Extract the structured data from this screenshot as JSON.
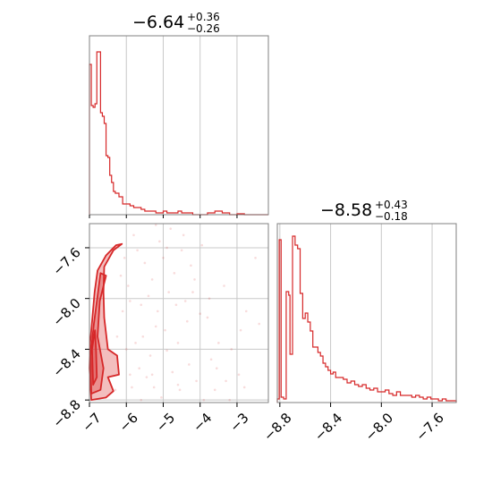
{
  "colors": {
    "series": "#d62728",
    "frame": "#808080",
    "grid": "#c8c8c8"
  },
  "chart_data": [
    {
      "type": "histogram",
      "panel": "top-left",
      "title": {
        "median": "−6.64",
        "plus": "+0.36",
        "minus": "−0.26"
      },
      "x_range": [
        -7.0,
        -2.15
      ],
      "grid_x": [
        -6,
        -5,
        -4,
        -3
      ],
      "bins": [
        -7.0,
        -6.95,
        -6.9,
        -6.85,
        -6.8,
        -6.75,
        -6.7,
        -6.65,
        -6.6,
        -6.55,
        -6.5,
        -6.45,
        -6.4,
        -6.35,
        -6.3,
        -6.2,
        -6.1,
        -6.0,
        -5.9,
        -5.8,
        -5.7,
        -5.6,
        -5.5,
        -5.4,
        -5.3,
        -5.2,
        -5.0,
        -4.9,
        -4.8,
        -4.6,
        -4.5,
        -4.3,
        -4.2,
        -4.0,
        -3.8,
        -3.6,
        -3.4,
        -3.2,
        -3.0,
        -2.8,
        -2.6,
        -2.4,
        -2.15
      ],
      "values": [
        0.84,
        0.61,
        0.6,
        0.62,
        0.91,
        0.91,
        0.57,
        0.55,
        0.51,
        0.33,
        0.32,
        0.22,
        0.18,
        0.13,
        0.12,
        0.1,
        0.06,
        0.06,
        0.05,
        0.04,
        0.04,
        0.03,
        0.02,
        0.02,
        0.02,
        0.01,
        0.02,
        0.01,
        0.01,
        0.02,
        0.01,
        0.01,
        0.0,
        0.0,
        0.01,
        0.02,
        0.01,
        0.0,
        0.005,
        0.0,
        0.0,
        0.0
      ],
      "ylim": [
        0,
        1.0
      ]
    },
    {
      "type": "histogram",
      "panel": "bottom-right",
      "title": {
        "median": "−8.58",
        "plus": "+0.43",
        "minus": "−0.18"
      },
      "x_range": [
        -8.82,
        -7.41
      ],
      "x_ticks": [
        -8.8,
        -8.4,
        -8.0,
        -7.6
      ],
      "x_tick_labels": [
        "−8.8",
        "−8.4",
        "−8.0",
        "−7.6"
      ],
      "bins": [
        -8.82,
        -8.805,
        -8.79,
        -8.77,
        -8.75,
        -8.73,
        -8.72,
        -8.7,
        -8.68,
        -8.66,
        -8.64,
        -8.62,
        -8.6,
        -8.58,
        -8.56,
        -8.54,
        -8.52,
        -8.5,
        -8.48,
        -8.46,
        -8.44,
        -8.42,
        -8.4,
        -8.38,
        -8.36,
        -8.33,
        -8.3,
        -8.27,
        -8.24,
        -8.21,
        -8.18,
        -8.15,
        -8.12,
        -8.09,
        -8.06,
        -8.03,
        -8.0,
        -7.97,
        -7.94,
        -7.91,
        -7.88,
        -7.85,
        -7.82,
        -7.79,
        -7.76,
        -7.73,
        -7.7,
        -7.67,
        -7.64,
        -7.61,
        -7.58,
        -7.55,
        -7.52,
        -7.49,
        -7.46,
        -7.43,
        -7.41
      ],
      "values": [
        0.02,
        0.91,
        0.03,
        0.02,
        0.62,
        0.6,
        0.27,
        0.93,
        0.88,
        0.86,
        0.61,
        0.47,
        0.5,
        0.45,
        0.4,
        0.31,
        0.31,
        0.28,
        0.26,
        0.22,
        0.2,
        0.18,
        0.16,
        0.17,
        0.14,
        0.14,
        0.13,
        0.11,
        0.12,
        0.1,
        0.09,
        0.1,
        0.08,
        0.07,
        0.08,
        0.06,
        0.06,
        0.07,
        0.05,
        0.04,
        0.06,
        0.04,
        0.04,
        0.04,
        0.03,
        0.04,
        0.03,
        0.02,
        0.03,
        0.02,
        0.02,
        0.01,
        0.02,
        0.01,
        0.01,
        0.01
      ],
      "ylim": [
        0,
        1.0
      ]
    },
    {
      "type": "scatter",
      "panel": "bottom-left",
      "x_range": [
        -7.0,
        -2.15
      ],
      "y_range": [
        -8.82,
        -7.41
      ],
      "x_ticks": [
        -7,
        -6,
        -5,
        -4,
        -3
      ],
      "x_tick_labels": [
        "−7",
        "−6",
        "−5",
        "−4",
        "−3"
      ],
      "y_ticks": [
        -8.8,
        -8.4,
        -8.0,
        -7.6
      ],
      "y_tick_labels": [
        "−8.8",
        "−8.4",
        "−8.0",
        "−7.6"
      ],
      "points": [
        [
          -5.9,
          -8.02
        ],
        [
          -5.6,
          -8.05
        ],
        [
          -5.3,
          -7.85
        ],
        [
          -5.1,
          -7.55
        ],
        [
          -4.8,
          -7.45
        ],
        [
          -4.5,
          -7.62
        ],
        [
          -4.2,
          -7.95
        ],
        [
          -4.0,
          -8.12
        ],
        [
          -3.8,
          -8.15
        ],
        [
          -3.5,
          -8.35
        ],
        [
          -5.7,
          -7.62
        ],
        [
          -5.2,
          -8.22
        ],
        [
          -4.9,
          -8.41
        ],
        [
          -4.6,
          -8.35
        ],
        [
          -4.3,
          -8.52
        ],
        [
          -4.1,
          -8.65
        ],
        [
          -3.7,
          -8.48
        ],
        [
          -3.3,
          -8.65
        ],
        [
          -2.9,
          -8.25
        ],
        [
          -2.5,
          -7.68
        ],
        [
          -5.95,
          -7.9
        ],
        [
          -5.85,
          -8.7
        ],
        [
          -5.65,
          -8.55
        ],
        [
          -5.45,
          -8.62
        ],
        [
          -5.25,
          -8.7
        ],
        [
          -5.05,
          -8.78
        ],
        [
          -4.85,
          -7.95
        ],
        [
          -4.65,
          -8.05
        ],
        [
          -4.45,
          -7.5
        ],
        [
          -4.25,
          -7.74
        ],
        [
          -6.05,
          -7.68
        ],
        [
          -5.55,
          -8.3
        ],
        [
          -5.35,
          -8.45
        ],
        [
          -5.15,
          -8.1
        ],
        [
          -4.95,
          -8.25
        ],
        [
          -4.75,
          -8.58
        ],
        [
          -4.55,
          -8.72
        ],
        [
          -4.35,
          -8.18
        ],
        [
          -4.15,
          -7.85
        ],
        [
          -3.95,
          -7.58
        ],
        [
          -3.75,
          -8.0
        ],
        [
          -3.55,
          -8.55
        ],
        [
          -3.35,
          -7.9
        ],
        [
          -3.15,
          -8.4
        ],
        [
          -2.95,
          -8.6
        ],
        [
          -2.75,
          -8.1
        ],
        [
          -5.8,
          -7.5
        ],
        [
          -5.0,
          -7.68
        ],
        [
          -4.7,
          -7.8
        ],
        [
          -4.4,
          -8.02
        ],
        [
          -6.2,
          -7.58
        ],
        [
          -6.1,
          -8.1
        ],
        [
          -6.0,
          -8.4
        ],
        [
          -5.9,
          -8.6
        ],
        [
          -5.75,
          -8.35
        ],
        [
          -5.5,
          -7.72
        ],
        [
          -5.4,
          -7.98
        ],
        [
          -5.2,
          -7.42
        ],
        [
          -4.9,
          -7.6
        ],
        [
          -4.6,
          -8.68
        ],
        [
          -3.9,
          -8.8
        ],
        [
          -3.6,
          -8.72
        ],
        [
          -3.2,
          -8.8
        ],
        [
          -2.8,
          -8.7
        ],
        [
          -2.4,
          -8.2
        ],
        [
          -6.3,
          -8.72
        ],
        [
          -6.25,
          -8.3
        ],
        [
          -6.15,
          -7.82
        ],
        [
          -5.6,
          -8.8
        ],
        [
          -5.3,
          -8.6
        ]
      ],
      "contours": [
        [
          [
            -6.95,
            -8.8
          ],
          [
            -7.0,
            -8.55
          ],
          [
            -6.98,
            -8.35
          ],
          [
            -6.92,
            -8.15
          ],
          [
            -6.86,
            -7.95
          ],
          [
            -6.78,
            -7.78
          ],
          [
            -6.55,
            -7.66
          ],
          [
            -6.28,
            -7.58
          ],
          [
            -6.12,
            -7.57
          ],
          [
            -6.35,
            -7.62
          ],
          [
            -6.6,
            -7.75
          ],
          [
            -6.62,
            -7.95
          ],
          [
            -6.6,
            -8.15
          ],
          [
            -6.5,
            -8.4
          ],
          [
            -6.25,
            -8.45
          ],
          [
            -6.2,
            -8.6
          ],
          [
            -6.5,
            -8.62
          ],
          [
            -6.35,
            -8.73
          ],
          [
            -6.55,
            -8.78
          ]
        ],
        [
          [
            -6.95,
            -8.75
          ],
          [
            -6.97,
            -8.45
          ],
          [
            -6.88,
            -8.2
          ],
          [
            -6.78,
            -7.98
          ],
          [
            -6.7,
            -7.8
          ],
          [
            -6.55,
            -7.82
          ],
          [
            -6.72,
            -8.02
          ],
          [
            -6.78,
            -8.3
          ],
          [
            -6.62,
            -8.55
          ],
          [
            -6.7,
            -8.72
          ]
        ],
        [
          [
            -6.9,
            -8.68
          ],
          [
            -6.93,
            -8.4
          ],
          [
            -6.85,
            -8.25
          ],
          [
            -6.82,
            -8.42
          ],
          [
            -6.8,
            -8.62
          ]
        ]
      ]
    }
  ]
}
